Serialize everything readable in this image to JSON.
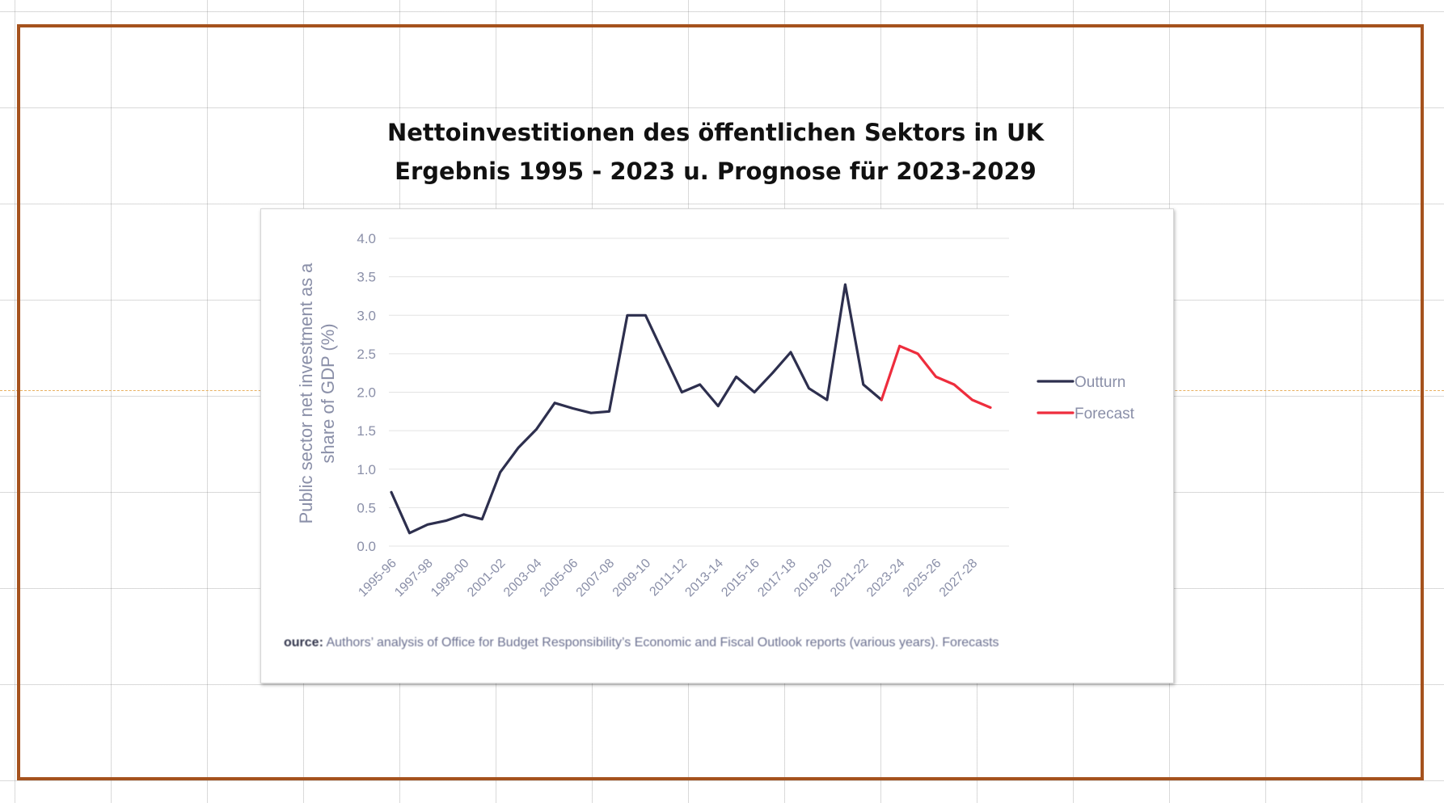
{
  "slide": {
    "title_line1": "Nettoinvestitionen des öffentlichen Sektors in UK",
    "title_line2": "Ergebnis 1995 - 2023  u. Prognose für 2023-2029"
  },
  "colors": {
    "frame": "#a5521d",
    "outturn": "#2d2f4e",
    "forecast": "#ee2d3d",
    "axis_text": "#8a8fa8"
  },
  "source": {
    "label": "ource:",
    "text": "Authors’ analysis of Office for Budget Responsibility’s Economic and Fiscal Outlook reports (various years). Forecasts"
  },
  "chart_data": {
    "type": "line",
    "ylabel_line1": "Public sector net investment as a",
    "ylabel_line2": "share of GDP (%)",
    "ylim": [
      0,
      4.0
    ],
    "yticks": [
      "0.0",
      "0.5",
      "1.0",
      "1.5",
      "2.0",
      "2.5",
      "3.0",
      "3.5",
      "4.0"
    ],
    "grid": true,
    "legend_position": "right",
    "x_categories": [
      "1995-96",
      "1996-97",
      "1997-98",
      "1998-99",
      "1999-00",
      "2000-01",
      "2001-02",
      "2002-03",
      "2003-04",
      "2004-05",
      "2005-06",
      "2006-07",
      "2007-08",
      "2008-09",
      "2009-10",
      "2010-11",
      "2011-12",
      "2012-13",
      "2013-14",
      "2014-15",
      "2015-16",
      "2016-17",
      "2017-18",
      "2018-19",
      "2019-20",
      "2020-21",
      "2021-22",
      "2022-23",
      "2023-24",
      "2024-25",
      "2025-26",
      "2026-27",
      "2027-28",
      "2028-29"
    ],
    "x_tick_labels": [
      "1995-96",
      "1997-98",
      "1999-00",
      "2001-02",
      "2003-04",
      "2005-06",
      "2007-08",
      "2009-10",
      "2011-12",
      "2013-14",
      "2015-16",
      "2017-18",
      "2019-20",
      "2021-22",
      "2023-24",
      "2025-26",
      "2027-28"
    ],
    "series": [
      {
        "name": "Outturn",
        "start_index": 0,
        "values": [
          0.7,
          0.17,
          0.28,
          0.33,
          0.41,
          0.35,
          0.96,
          1.28,
          1.52,
          1.86,
          1.79,
          1.73,
          1.75,
          3.0,
          3.0,
          2.5,
          2.0,
          2.1,
          1.82,
          2.2,
          2.0,
          2.25,
          2.52,
          2.05,
          1.9,
          3.4,
          2.1,
          1.9
        ]
      },
      {
        "name": "Forecast",
        "start_index": 27,
        "values": [
          1.9,
          2.6,
          2.5,
          2.2,
          2.1,
          1.9,
          1.8
        ]
      }
    ]
  }
}
